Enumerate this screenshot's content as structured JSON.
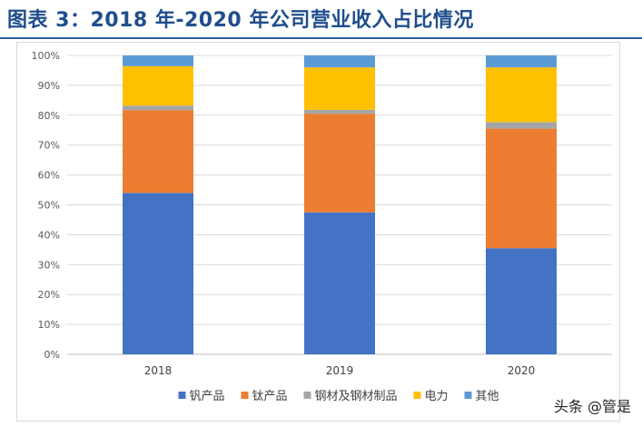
{
  "title": "图表 3：2018 年-2020 年公司营业收入占比情况",
  "watermark": "头条 @管是",
  "chart_data": {
    "type": "bar",
    "stacked": true,
    "categories": [
      "2018",
      "2019",
      "2020"
    ],
    "y_ticks": [
      "0%",
      "10%",
      "20%",
      "30%",
      "40%",
      "50%",
      "60%",
      "70%",
      "80%",
      "90%",
      "100%"
    ],
    "ylim": [
      0,
      100
    ],
    "grid": true,
    "legend_position": "bottom",
    "series": [
      {
        "name": "钒产品",
        "color": "#4472c4",
        "values": [
          54,
          47.5,
          35.5
        ]
      },
      {
        "name": "钛产品",
        "color": "#ed7d31",
        "values": [
          27.7,
          33,
          40
        ]
      },
      {
        "name": "钢材及钢材制品",
        "color": "#a5a5a5",
        "values": [
          1.5,
          1.3,
          2.2
        ]
      },
      {
        "name": "电力",
        "color": "#ffc000",
        "values": [
          13.2,
          14.2,
          18.3
        ]
      },
      {
        "name": "其他",
        "color": "#5b9bd5",
        "values": [
          3.6,
          4,
          4
        ]
      }
    ]
  }
}
